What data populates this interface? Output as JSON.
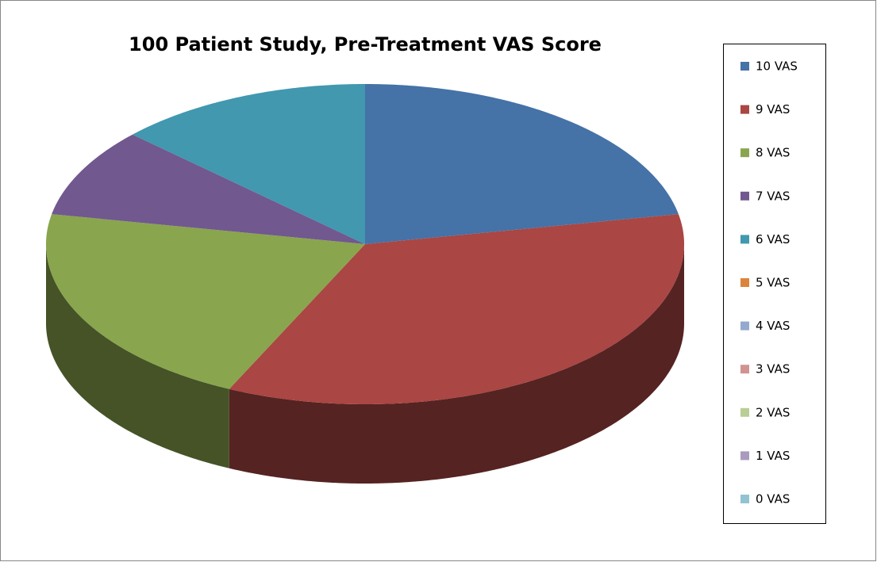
{
  "chart_data": {
    "type": "pie",
    "title": "100 Patient Study, Pre-Treatment VAS Score",
    "categories": [
      "10 VAS",
      "9 VAS",
      "8 VAS",
      "7 VAS",
      "6 VAS",
      "5 VAS",
      "4 VAS",
      "3 VAS",
      "2 VAS",
      "1 VAS",
      "0 VAS"
    ],
    "values": [
      22,
      35,
      21,
      9,
      13,
      0,
      0,
      0,
      0,
      0,
      0
    ],
    "colors": [
      "#4572a7",
      "#aa4643",
      "#89a54e",
      "#71588f",
      "#4198af",
      "#db843d",
      "#93a9cf",
      "#d19392",
      "#b9cd96",
      "#a99bbd",
      "#92c3d2"
    ],
    "legend": "right"
  }
}
